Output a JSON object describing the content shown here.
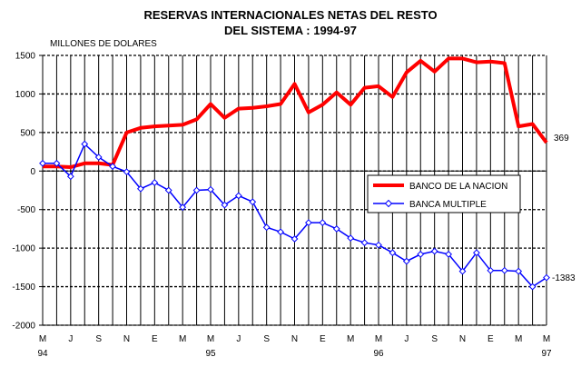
{
  "chart_data": {
    "type": "line",
    "title_line1": "RESERVAS INTERNACIONALES NETAS DEL RESTO",
    "title_line2": "DEL SISTEMA : 1994-97",
    "ylabel": "MILLONES DE DOLARES",
    "ylim": [
      -2000,
      1500
    ],
    "yticks": [
      "1500",
      "1000",
      "500",
      "0",
      "-500",
      "-1000",
      "-1500",
      "-2000"
    ],
    "x_month_labels": [
      "M",
      "J",
      "S",
      "N",
      "E",
      "M",
      "M",
      "J",
      "S",
      "N",
      "E",
      "M",
      "M",
      "J",
      "S",
      "N",
      "E",
      "M",
      "M"
    ],
    "year_labels": [
      "94",
      "95",
      "96",
      "97"
    ],
    "grid": true,
    "legend": "inside-right",
    "series": [
      {
        "name": "BANCO DE LA NACION",
        "color": "#ff0000",
        "end_label": "369",
        "values": [
          60,
          60,
          50,
          100,
          100,
          80,
          500,
          560,
          580,
          590,
          600,
          670,
          870,
          690,
          810,
          820,
          840,
          870,
          1130,
          760,
          860,
          1020,
          860,
          1080,
          1100,
          960,
          1280,
          1430,
          1290,
          1460,
          1460,
          1410,
          1420,
          1400,
          580,
          610,
          369
        ]
      },
      {
        "name": "BANCA MULTIPLE",
        "color": "#0000ff",
        "end_label": "-1383",
        "values": [
          100,
          100,
          -70,
          350,
          180,
          60,
          -10,
          -230,
          -150,
          -250,
          -470,
          -250,
          -240,
          -440,
          -320,
          -400,
          -730,
          -790,
          -880,
          -670,
          -670,
          -750,
          -870,
          -930,
          -960,
          -1060,
          -1170,
          -1080,
          -1040,
          -1080,
          -1300,
          -1060,
          -1290,
          -1290,
          -1300,
          -1500,
          -1383
        ]
      }
    ]
  }
}
